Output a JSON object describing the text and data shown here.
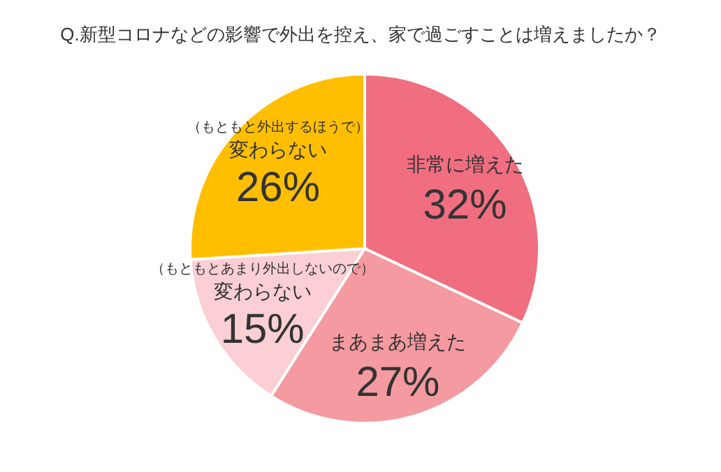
{
  "chart_data": {
    "type": "pie",
    "title": "Q.新型コロナなどの影響で外出を控え、家で過ごすことは増えましたか？",
    "categories": [
      "非常に増えた",
      "まあまあ増えた",
      "（もともとあまり外出しないので）変わらない",
      "（もともと外出するほうで）変わらない"
    ],
    "values": [
      32,
      27,
      15,
      26
    ],
    "value_labels": [
      "32%",
      "27%",
      "15%",
      "26%"
    ],
    "colors": [
      "#f06e80",
      "#f59aa0",
      "#fbcfd3",
      "#ffbf00"
    ],
    "legend": false
  }
}
